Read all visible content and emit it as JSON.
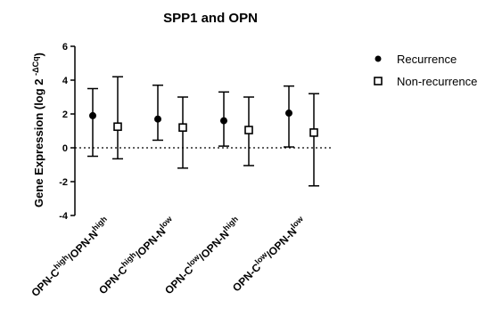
{
  "chart_data": {
    "type": "scatter",
    "title": "SPP1 and OPN",
    "ylabel": {
      "base": "Gene Expression (log 2",
      "sup": "-ΔCq",
      "close": ")"
    },
    "ylim": [
      -4,
      6
    ],
    "yticks": [
      "6",
      "4",
      "2",
      "0",
      "-2",
      "-4"
    ],
    "reference_line": {
      "y": 0,
      "style": "dotted"
    },
    "categories": [
      {
        "parts": [
          [
            "OPN-C",
            ""
          ],
          [
            "high",
            "sup"
          ],
          [
            "/OPN-N",
            ""
          ],
          [
            "high",
            "sup"
          ]
        ]
      },
      {
        "parts": [
          [
            "OPN-C",
            ""
          ],
          [
            "high",
            "sup"
          ],
          [
            "/OPN-N",
            ""
          ],
          [
            "low",
            "sup"
          ]
        ]
      },
      {
        "parts": [
          [
            "OPN-C",
            ""
          ],
          [
            "low",
            "sup"
          ],
          [
            "/OPN-N",
            ""
          ],
          [
            "high",
            "sup"
          ]
        ]
      },
      {
        "parts": [
          [
            "OPN-C",
            ""
          ],
          [
            "low",
            "sup"
          ],
          [
            "/OPN-N",
            ""
          ],
          [
            "low",
            "sup"
          ]
        ]
      }
    ],
    "series": [
      {
        "name": "Recurrence",
        "marker": "filled-circle",
        "values": [
          1.9,
          1.7,
          1.6,
          2.05
        ],
        "error_low": [
          -0.5,
          0.45,
          0.1,
          0.05
        ],
        "error_high": [
          3.5,
          3.7,
          3.3,
          3.65
        ]
      },
      {
        "name": "Non-recurrence",
        "marker": "open-square",
        "values": [
          1.25,
          1.2,
          1.05,
          0.9
        ],
        "error_low": [
          -0.65,
          -1.2,
          -1.05,
          -2.25
        ],
        "error_high": [
          4.2,
          3.0,
          3.0,
          3.2
        ]
      }
    ],
    "legend_position": "right",
    "grid": false
  }
}
